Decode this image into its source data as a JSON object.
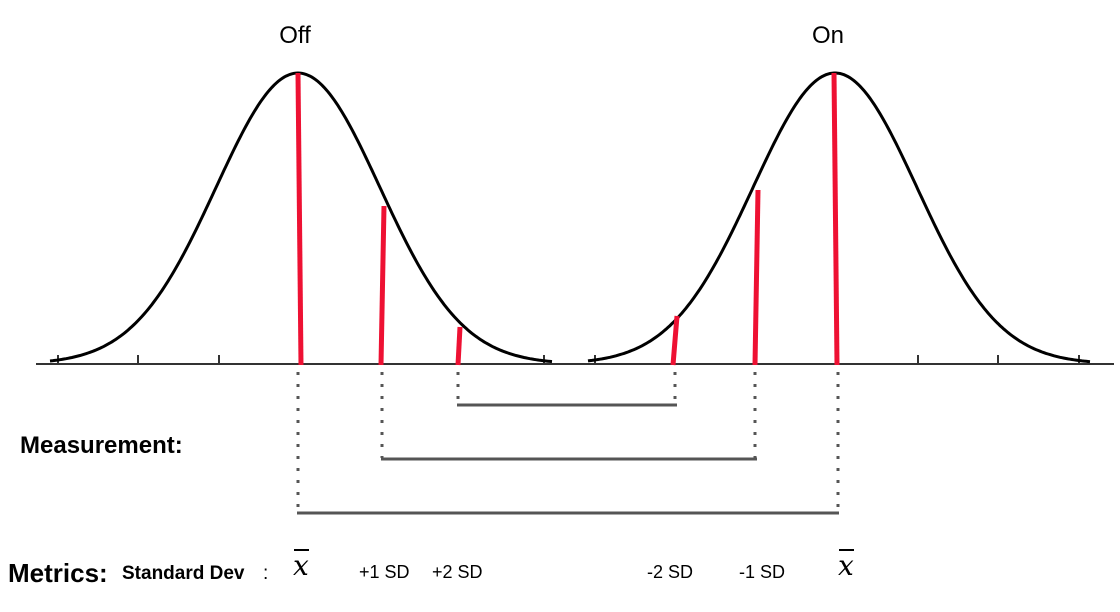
{
  "labels": {
    "off": "Off",
    "on": "On",
    "measurement": "Measurement:",
    "metrics": "Metrics:",
    "standard_dev": "Standard Dev",
    "standard_dev_colon": ":"
  },
  "metrics": {
    "off_mean": "x",
    "plus_1_sd": "+1 SD",
    "plus_2_sd": "+2 SD",
    "minus_2_sd": "-2 SD",
    "minus_1_sd": "-1 SD",
    "on_mean": "x"
  },
  "colors": {
    "curve": "#000000",
    "marker": "#ee1133",
    "axis": "#333333",
    "bracket": "#555555",
    "dotted": "#555555"
  }
}
